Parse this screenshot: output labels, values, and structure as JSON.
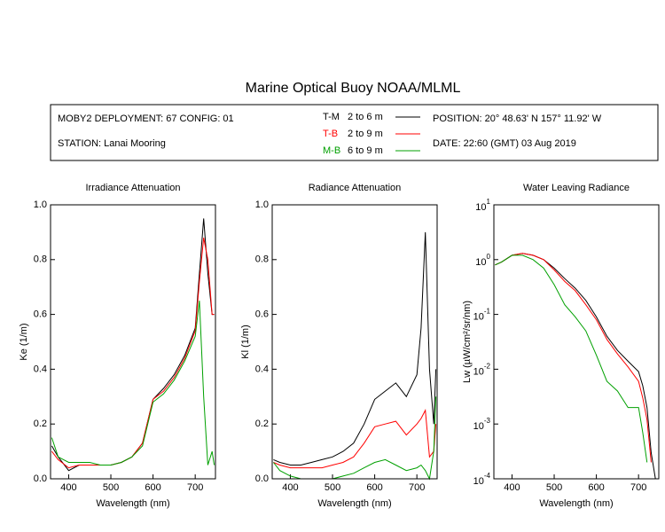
{
  "header": {
    "title": "Marine Optical Buoy NOAA/MLML",
    "deployment": "MOBY2 DEPLOYMENT: 67 CONFIG: 01",
    "station": "STATION: Lanai Mooring",
    "position": "POSITION: 20° 48.63' N   157° 11.92' W",
    "date": "DATE: 22:60 (GMT) 03 Aug 2019"
  },
  "legend": [
    {
      "name": "T-M",
      "depth": "2 to 6  m",
      "color": "#000000"
    },
    {
      "name": "T-B",
      "depth": "2 to 9  m",
      "color": "#ff0000"
    },
    {
      "name": "M-B",
      "depth": "6 to 9  m",
      "color": "#00a000"
    }
  ],
  "chart_data": [
    {
      "type": "line",
      "title": "Irradiance Attenuation",
      "x_label": "Wavelength (nm)",
      "y_label": "Ke  (1/m)",
      "x": [
        360,
        375,
        400,
        425,
        450,
        475,
        500,
        525,
        550,
        575,
        600,
        625,
        650,
        675,
        700,
        710,
        720,
        730,
        740,
        745
      ],
      "xlim": [
        357,
        748
      ],
      "xticks": [
        400,
        500,
        600,
        700
      ],
      "ylim": [
        0,
        1
      ],
      "yticks": [
        {
          "value": 0,
          "label": "0.0"
        },
        {
          "value": 0.2,
          "label": "0.2"
        },
        {
          "value": 0.4,
          "label": "0.4"
        },
        {
          "value": 0.6,
          "label": "0.6"
        },
        {
          "value": 0.8,
          "label": "0.8"
        },
        {
          "value": 1,
          "label": "1.0"
        }
      ],
      "series": [
        {
          "color": "#000000",
          "values": [
            0.12,
            0.08,
            0.03,
            0.05,
            0.05,
            0.05,
            0.05,
            0.06,
            0.08,
            0.13,
            0.29,
            0.33,
            0.38,
            0.45,
            0.55,
            0.75,
            0.95,
            0.75,
            0.6,
            0.6
          ]
        },
        {
          "color": "#ff0000",
          "values": [
            0.1,
            0.07,
            0.04,
            0.05,
            0.05,
            0.05,
            0.05,
            0.06,
            0.08,
            0.13,
            0.29,
            0.32,
            0.37,
            0.44,
            0.54,
            0.72,
            0.88,
            0.8,
            0.6,
            0.6
          ]
        },
        {
          "color": "#00a000",
          "values": [
            0.15,
            0.08,
            0.06,
            0.06,
            0.06,
            0.05,
            0.05,
            0.06,
            0.08,
            0.12,
            0.28,
            0.31,
            0.36,
            0.43,
            0.52,
            0.65,
            0.3,
            0.05,
            0.1,
            0.05
          ]
        }
      ]
    },
    {
      "type": "line",
      "title": "Radiance Attenuation",
      "x_label": "Wavelength (nm)",
      "y_label": "Kl  (1/m)",
      "x": [
        360,
        375,
        400,
        425,
        450,
        475,
        500,
        525,
        550,
        575,
        600,
        625,
        650,
        675,
        700,
        710,
        720,
        730,
        740,
        745
      ],
      "xlim": [
        357,
        748
      ],
      "xticks": [
        400,
        500,
        600,
        700
      ],
      "ylim": [
        0,
        1
      ],
      "yticks": [
        {
          "value": 0,
          "label": "0.0"
        },
        {
          "value": 0.2,
          "label": "0.2"
        },
        {
          "value": 0.4,
          "label": "0.4"
        },
        {
          "value": 0.6,
          "label": "0.6"
        },
        {
          "value": 0.8,
          "label": "0.8"
        },
        {
          "value": 1,
          "label": "1.0"
        }
      ],
      "series": [
        {
          "color": "#000000",
          "values": [
            0.07,
            0.06,
            0.05,
            0.05,
            0.06,
            0.07,
            0.08,
            0.1,
            0.13,
            0.2,
            0.29,
            0.32,
            0.35,
            0.3,
            0.38,
            0.55,
            0.9,
            0.4,
            0.2,
            0.4
          ]
        },
        {
          "color": "#ff0000",
          "values": [
            0.06,
            0.05,
            0.04,
            0.04,
            0.04,
            0.04,
            0.05,
            0.06,
            0.08,
            0.13,
            0.19,
            0.2,
            0.21,
            0.16,
            0.2,
            0.22,
            0.25,
            0.08,
            0.1,
            0.2
          ]
        },
        {
          "color": "#00a000",
          "values": [
            0.06,
            0.03,
            0.01,
            0,
            0,
            0,
            0,
            0.01,
            0.02,
            0.04,
            0.06,
            0.07,
            0.05,
            0.03,
            0.04,
            0.05,
            0.03,
            0,
            0.1,
            0.3
          ]
        }
      ]
    },
    {
      "type": "line",
      "title": "Water Leaving Radiance",
      "x_label": "Wavelength (nm)",
      "y_label": "Lw  (µW/cm²/sr/nm)",
      "log": true,
      "x": [
        360,
        375,
        400,
        425,
        450,
        475,
        500,
        525,
        550,
        575,
        600,
        625,
        650,
        675,
        700,
        710,
        720,
        730,
        740,
        745
      ],
      "xlim": [
        357,
        748
      ],
      "xticks": [
        400,
        500,
        600,
        700
      ],
      "ylim": [
        0.0001,
        10
      ],
      "yticks": [
        {
          "value": 0.0001,
          "label": "10",
          "exponent": "-4"
        },
        {
          "value": 0.001,
          "label": "10",
          "exponent": "-3"
        },
        {
          "value": 0.01,
          "label": "10",
          "exponent": "-2"
        },
        {
          "value": 0.1,
          "label": "10",
          "exponent": "-1"
        },
        {
          "value": 1,
          "label": "10",
          "exponent": "0"
        },
        {
          "value": 10,
          "label": "10",
          "exponent": "1"
        }
      ],
      "series": [
        {
          "color": "#000000",
          "values": [
            0.8,
            0.9,
            1.2,
            1.3,
            1.2,
            1.0,
            0.7,
            0.45,
            0.3,
            0.18,
            0.09,
            0.04,
            0.022,
            0.014,
            0.009,
            0.005,
            0.002,
            0.0003,
            0.0001,
            null
          ]
        },
        {
          "color": "#ff0000",
          "values": [
            0.8,
            0.9,
            1.2,
            1.3,
            1.2,
            1.0,
            0.65,
            0.4,
            0.27,
            0.15,
            0.08,
            0.035,
            0.019,
            0.011,
            0.006,
            0.003,
            0.0012,
            0.0002,
            null,
            null
          ]
        },
        {
          "color": "#00a000",
          "values": [
            0.8,
            0.9,
            1.2,
            1.2,
            1.0,
            0.7,
            0.35,
            0.15,
            0.09,
            0.05,
            0.018,
            0.006,
            0.004,
            0.002,
            0.002,
            0.0007,
            0.0002,
            null,
            null,
            null
          ]
        }
      ]
    }
  ]
}
